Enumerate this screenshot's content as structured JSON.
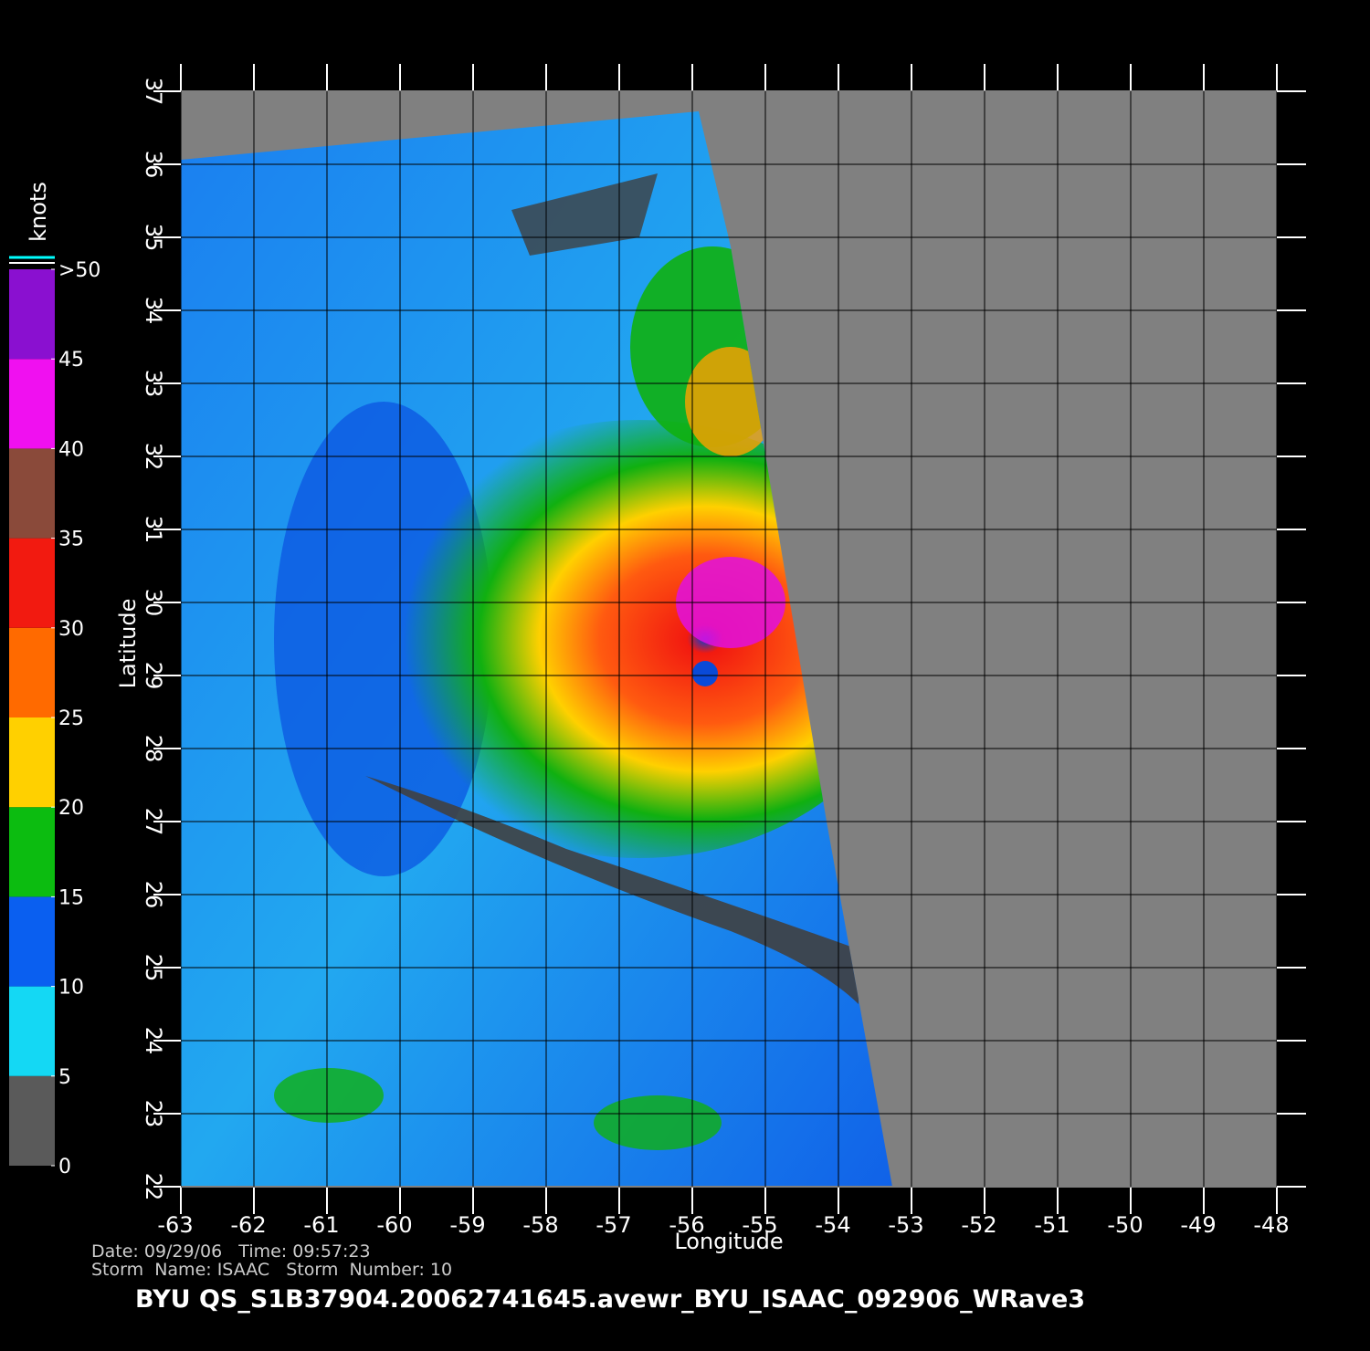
{
  "map": {
    "xlabel": "Longitude",
    "ylabel": "Latitude",
    "xlim": [
      -63,
      -48
    ],
    "ylim": [
      22,
      37
    ],
    "xticks": [
      -63,
      -62,
      -61,
      -60,
      -59,
      -58,
      -57,
      -56,
      -55,
      -54,
      -53,
      -52,
      -51,
      -50,
      -49,
      -48
    ],
    "yticks": [
      22,
      23,
      24,
      25,
      26,
      27,
      28,
      29,
      30,
      31,
      32,
      33,
      34,
      35,
      36,
      37
    ],
    "colorbar": {
      "label": "knots",
      "lim": [
        0,
        50
      ],
      "ticks": [
        0,
        5,
        10,
        15,
        20,
        25,
        30,
        35,
        40,
        45,
        {
          "value": 50,
          "label": ">50"
        }
      ],
      "colors": [
        "#5a5a5a",
        "#14d8f4",
        "#0a5ff0",
        "#0cbc10",
        "#ffd000",
        "#ff6a00",
        "#f21a10",
        "#8a4a3a",
        "#f010f0",
        "#8a10d0"
      ]
    },
    "annotations": {
      "date_time": "Date: 09/29/06   Time: 09:57:23",
      "storm": "Storm  Name: ISAAC   Storm  Number: 10",
      "file": "BYU  QS_S1B37904.20062741645.avewr_BYU_ISAAC_092906_WRave3"
    }
  }
}
